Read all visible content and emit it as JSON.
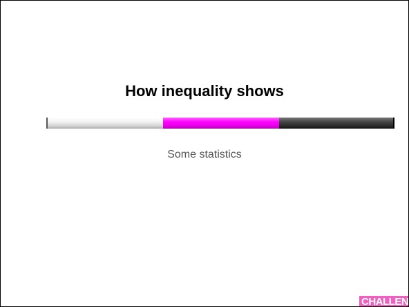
{
  "slide": {
    "title": "How inequality shows",
    "subtitle": "Some statistics",
    "colors": {
      "bar_left": "#e6e6e6",
      "bar_middle": "#ff00ff",
      "bar_right": "#333333",
      "logo_background": "#f060c0"
    }
  },
  "logo": {
    "text": "CHALLENGE"
  }
}
